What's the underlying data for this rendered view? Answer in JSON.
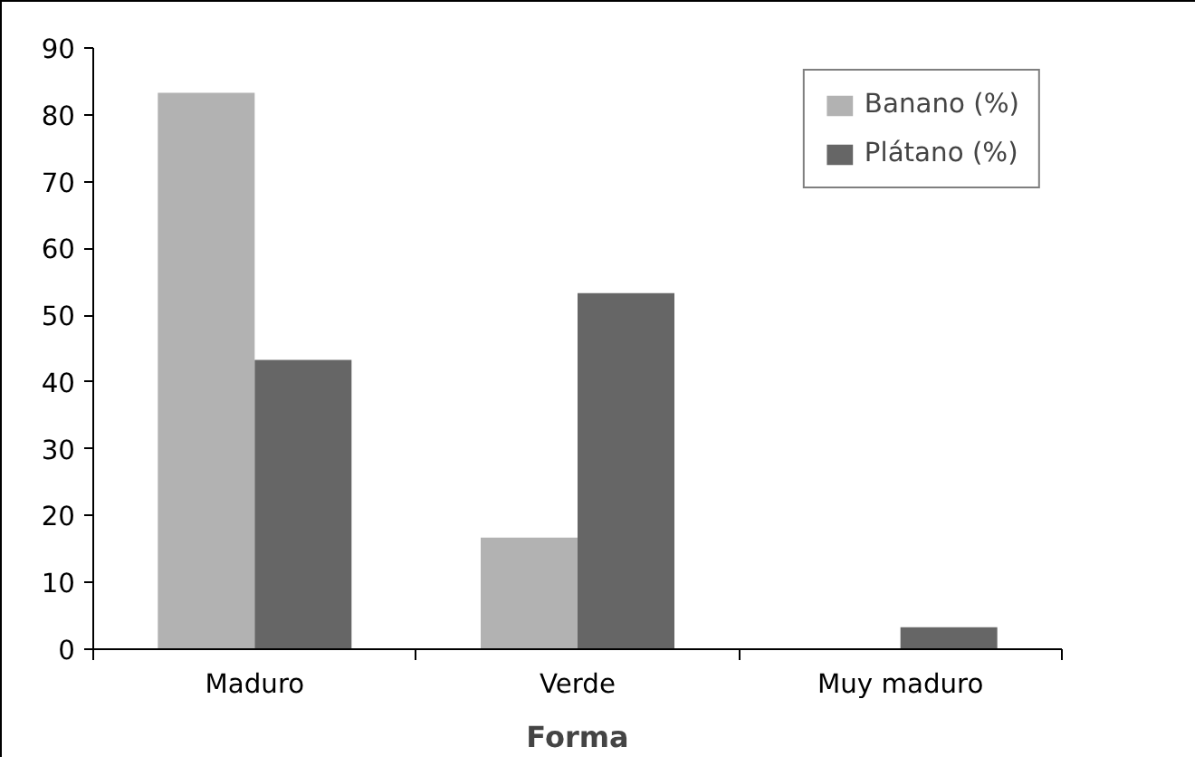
{
  "chart_data": {
    "type": "bar",
    "xlabel": "Forma",
    "categories": [
      "Maduro",
      "Verde",
      "Muy maduro"
    ],
    "series": [
      {
        "name": "Banano (%)",
        "color": "#b2b2b2",
        "values": [
          83.3,
          16.7,
          0
        ]
      },
      {
        "name": "Plátano (%)",
        "color": "#666666",
        "values": [
          43.3,
          53.3,
          3.3
        ]
      }
    ],
    "ylim": [
      0,
      90
    ],
    "yticks": [
      0,
      10,
      20,
      30,
      40,
      50,
      60,
      70,
      80,
      90
    ],
    "grid": false,
    "legend": "top right"
  }
}
